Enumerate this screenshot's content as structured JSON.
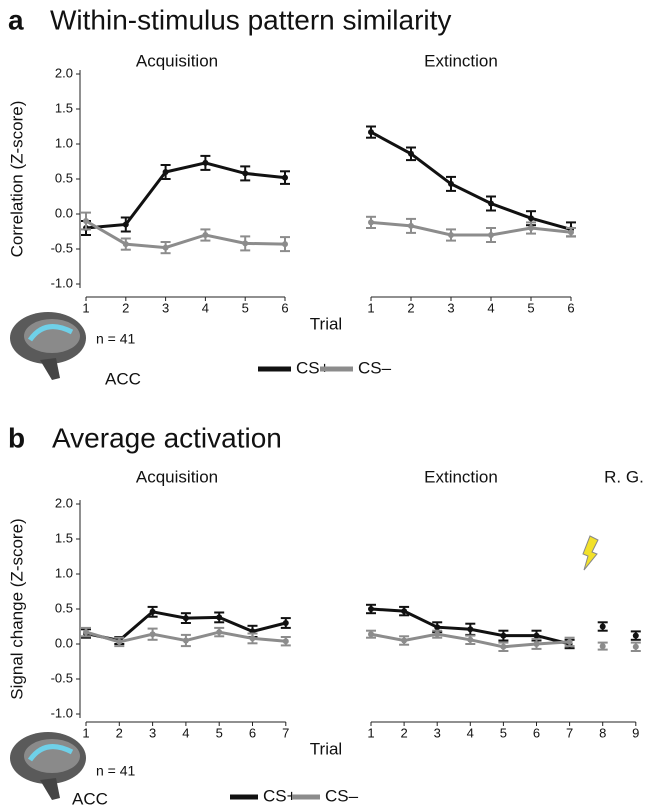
{
  "chart_data": [
    {
      "type": "line",
      "label": "a",
      "title": "Within-stimulus pattern similarity",
      "ylabel": "Correlation (Z-score)",
      "xlabel": "Trial",
      "annotation": "n = 41",
      "region": "ACC",
      "ylim": [
        -1,
        2
      ],
      "yticks": [
        {
          "value": 2,
          "label": "2.0"
        },
        1.5,
        {
          "value": 1,
          "label": "1.0"
        },
        0.5,
        {
          "value": 0,
          "label": "0.0"
        },
        -0.5,
        {
          "value": -1,
          "label": "-1.0"
        }
      ],
      "series": [
        {
          "name": "CS+",
          "color": "#111111"
        },
        {
          "name": "CS–",
          "color": "#8c8c8c"
        }
      ],
      "subplots": [
        {
          "title": "Acquisition",
          "x": [
            1,
            2,
            3,
            4,
            5,
            6
          ],
          "lines": true,
          "values": [
            [
              -0.2,
              -0.15,
              0.6,
              0.73,
              0.58,
              0.52
            ],
            [
              -0.1,
              -0.43,
              -0.48,
              -0.3,
              -0.42,
              -0.43
            ]
          ],
          "errors": [
            [
              0.1,
              0.1,
              0.1,
              0.1,
              0.1,
              0.09
            ],
            [
              0.12,
              0.08,
              0.08,
              0.08,
              0.1,
              0.1
            ]
          ]
        },
        {
          "title": "Extinction",
          "x": [
            1,
            2,
            3,
            4,
            5,
            6
          ],
          "lines": true,
          "values": [
            [
              1.17,
              0.86,
              0.43,
              0.15,
              -0.06,
              -0.22
            ],
            [
              -0.12,
              -0.17,
              -0.3,
              -0.3,
              -0.2,
              -0.26
            ]
          ],
          "errors": [
            [
              0.08,
              0.09,
              0.1,
              0.1,
              0.1,
              0.1
            ],
            [
              0.08,
              0.1,
              0.08,
              0.1,
              0.08,
              0.06
            ]
          ]
        }
      ]
    },
    {
      "type": "line",
      "label": "b",
      "title": "Average activation",
      "ylabel": "Signal change (Z-score)",
      "xlabel": "Trial",
      "annotation": "n = 41",
      "region": "ACC",
      "ylim": [
        -1,
        2
      ],
      "yticks": [
        {
          "value": 2,
          "label": "2.0"
        },
        1.5,
        {
          "value": 1,
          "label": "1.0"
        },
        0.5,
        {
          "value": 0,
          "label": "0.0"
        },
        -0.5,
        {
          "value": -1,
          "label": "-1.0"
        }
      ],
      "series": [
        {
          "name": "CS+",
          "color": "#111111"
        },
        {
          "name": "CS–",
          "color": "#8c8c8c"
        }
      ],
      "subplots": [
        {
          "title": "Acquisition",
          "x": [
            1,
            2,
            3,
            4,
            5,
            6,
            7
          ],
          "lines": true,
          "values": [
            [
              0.15,
              0.05,
              0.46,
              0.37,
              0.38,
              0.18,
              0.3
            ],
            [
              0.17,
              0.03,
              0.14,
              0.05,
              0.17,
              0.08,
              0.04
            ]
          ],
          "errors": [
            [
              0.06,
              0.05,
              0.07,
              0.07,
              0.07,
              0.08,
              0.07
            ],
            [
              0.06,
              0.06,
              0.08,
              0.08,
              0.06,
              0.07,
              0.06
            ]
          ]
        },
        {
          "title": "Extinction",
          "x": [
            1,
            2,
            3,
            4,
            5,
            6,
            7
          ],
          "lines": true,
          "values": [
            [
              0.5,
              0.47,
              0.24,
              0.21,
              0.12,
              0.12,
              0.0
            ],
            [
              0.14,
              0.05,
              0.14,
              0.06,
              -0.04,
              0.0,
              0.03
            ]
          ],
          "errors": [
            [
              0.06,
              0.06,
              0.07,
              0.08,
              0.07,
              0.07,
              0.06
            ],
            [
              0.05,
              0.06,
              0.05,
              0.06,
              0.06,
              0.07,
              0.06
            ]
          ]
        },
        {
          "title": "R. G.",
          "x": [
            8,
            9
          ],
          "lines": false,
          "values": [
            [
              0.25,
              0.12
            ],
            [
              -0.03,
              -0.04
            ]
          ],
          "errors": [
            [
              0.06,
              0.06
            ],
            [
              0.05,
              0.06
            ]
          ]
        }
      ]
    }
  ]
}
